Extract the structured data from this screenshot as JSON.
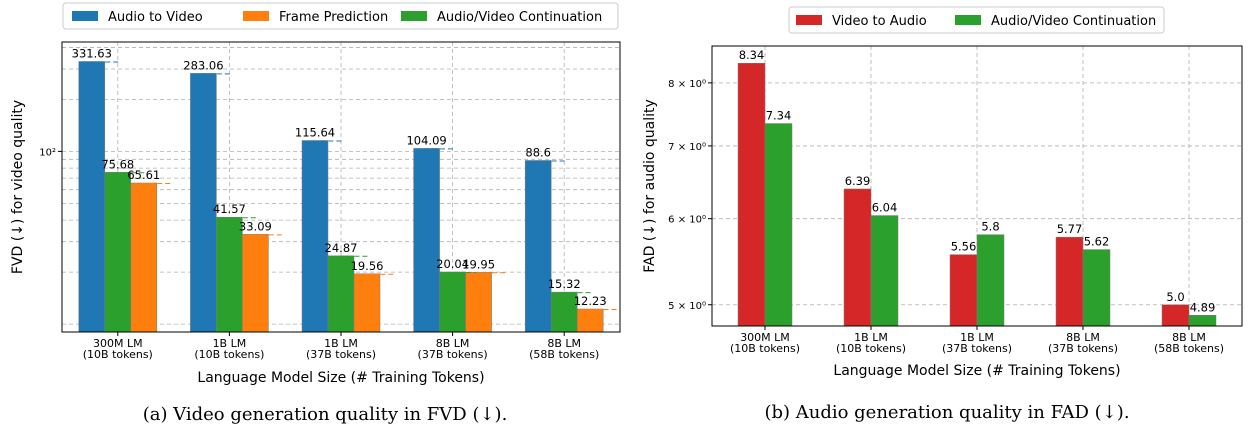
{
  "chart_data": [
    {
      "type": "bar",
      "caption": "(a) Video generation quality in FVD (↓).",
      "xlabel": "Language Model Size (# Training Tokens)",
      "ylabel": "FVD (↓) for video quality",
      "yscale": "log",
      "ylim": [
        9,
        430
      ],
      "ytick_labels": [
        {
          "value": 100,
          "label": "10²"
        }
      ],
      "grid": true,
      "legend_position": "top (above plot, outside)",
      "categories": [
        [
          "300M LM",
          "(10B tokens)"
        ],
        [
          "1B LM",
          "(10B tokens)"
        ],
        [
          "1B LM",
          "(37B tokens)"
        ],
        [
          "8B LM",
          "(37B tokens)"
        ],
        [
          "8B LM",
          "(58B tokens)"
        ]
      ],
      "series": [
        {
          "name": "Audio to Video",
          "color": "#1f77b4",
          "values": [
            331.63,
            283.06,
            115.64,
            104.09,
            88.6
          ],
          "labels": [
            "331.63",
            "283.06",
            "115.64",
            "104.09",
            "88.6"
          ]
        },
        {
          "name": "Audio/Video Continuation",
          "color": "#2ca02c",
          "values": [
            75.68,
            41.57,
            24.87,
            20.04,
            15.32
          ],
          "labels": [
            "75.68",
            "41.57",
            "24.87",
            "20.04",
            "15.32"
          ]
        },
        {
          "name": "Frame Prediction",
          "color": "#ff7f0e",
          "values": [
            65.61,
            33.09,
            19.56,
            19.95,
            12.23
          ],
          "labels": [
            "65.61",
            "33.09",
            "19.56",
            "19.95",
            "12.23"
          ]
        }
      ],
      "legend": [
        {
          "name": "Audio to Video",
          "color": "#1f77b4"
        },
        {
          "name": "Frame Prediction",
          "color": "#ff7f0e"
        },
        {
          "name": "Audio/Video Continuation",
          "color": "#2ca02c"
        }
      ]
    },
    {
      "type": "bar",
      "caption": "(b) Audio generation quality in FAD (↓).",
      "xlabel": "Language Model Size (# Training Tokens)",
      "ylabel": "FAD (↓) for audio quality",
      "yscale": "log",
      "ylim": [
        4.78,
        8.65
      ],
      "ytick_labels": [
        {
          "value": 5,
          "label": "5 × 10⁰"
        },
        {
          "value": 6,
          "label": "6 × 10⁰"
        },
        {
          "value": 7,
          "label": "7 × 10⁰"
        },
        {
          "value": 8,
          "label": "8 × 10⁰"
        }
      ],
      "grid": true,
      "legend_position": "top (above plot, outside)",
      "categories": [
        [
          "300M LM",
          "(10B tokens)"
        ],
        [
          "1B LM",
          "(10B tokens)"
        ],
        [
          "1B LM",
          "(37B tokens)"
        ],
        [
          "8B LM",
          "(37B tokens)"
        ],
        [
          "8B LM",
          "(58B tokens)"
        ]
      ],
      "series": [
        {
          "name": "Video to Audio",
          "color": "#d62728",
          "values": [
            8.34,
            6.39,
            5.56,
            5.77,
            5.0
          ],
          "labels": [
            "8.34",
            "6.39",
            "5.56",
            "5.77",
            "5.0"
          ]
        },
        {
          "name": "Audio/Video Continuation",
          "color": "#2ca02c",
          "values": [
            7.34,
            6.04,
            5.8,
            5.62,
            4.89
          ],
          "labels": [
            "7.34",
            "6.04",
            "5.8",
            "5.62",
            "4.89"
          ]
        }
      ],
      "legend": [
        {
          "name": "Video to Audio",
          "color": "#d62728"
        },
        {
          "name": "Audio/Video Continuation",
          "color": "#2ca02c"
        }
      ]
    }
  ]
}
